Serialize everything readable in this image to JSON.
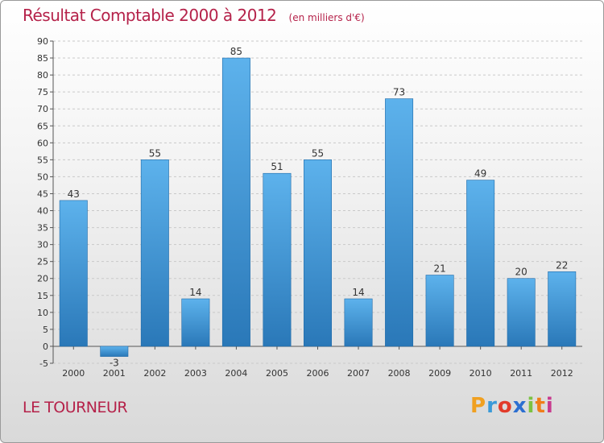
{
  "header": {
    "title": "Résultat Comptable 2000 à 2012",
    "subtitle": "(en milliers d'€)"
  },
  "footer": {
    "commune": "LE TOURNEUR",
    "logo_letters": [
      "P",
      "r",
      "o",
      "x",
      "i",
      "t",
      "i"
    ],
    "logo_colors": [
      "#f0a020",
      "#3a9ad8",
      "#e23b2a",
      "#2c6fd1",
      "#7cc242",
      "#f07e1a",
      "#c83a8e"
    ]
  },
  "colors": {
    "bar_top": "#5db2ec",
    "bar_bottom": "#2a78b8",
    "title": "#b5224a"
  },
  "chart_data": {
    "type": "bar",
    "title": "Résultat Comptable 2000 à 2012",
    "xlabel": "",
    "ylabel": "",
    "categories": [
      "2000",
      "2001",
      "2002",
      "2003",
      "2004",
      "2005",
      "2006",
      "2007",
      "2008",
      "2009",
      "2010",
      "2011",
      "2012"
    ],
    "values": [
      43,
      -3,
      55,
      14,
      85,
      51,
      55,
      14,
      73,
      21,
      49,
      20,
      22
    ],
    "value_labels": [
      "43",
      "-3",
      "55",
      "14",
      "85",
      "51",
      "55",
      "14",
      "73",
      "21",
      "49",
      "20",
      "22"
    ],
    "yticks": [
      -5,
      0,
      5,
      10,
      15,
      20,
      25,
      30,
      35,
      40,
      45,
      50,
      55,
      60,
      65,
      70,
      75,
      80,
      85,
      90
    ],
    "ylim": [
      -5,
      90
    ],
    "grid": true
  }
}
